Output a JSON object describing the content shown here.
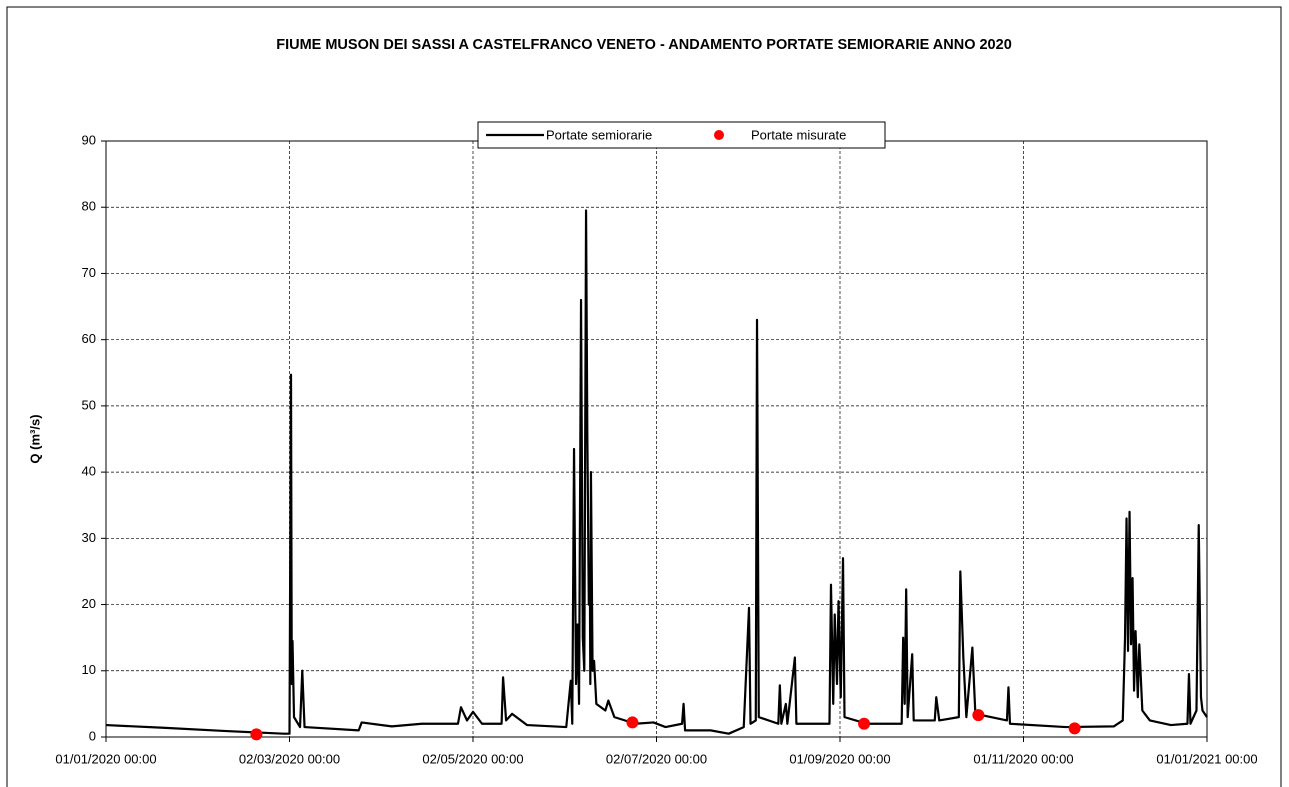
{
  "chart_data": {
    "type": "line",
    "title": "FIUME MUSON DEI SASSI A CASTELFRANCO VENETO - ANDAMENTO PORTATE SEMIORARIE ANNO 2020",
    "ylabel": "Q (m³/s)",
    "xlim": [
      "2020-01-01 00:00",
      "2021-01-01 00:00"
    ],
    "xticks": [
      {
        "value": "2020-01-01 00:00",
        "label": "01/01/2020 00:00"
      },
      {
        "value": "2020-03-02 00:00",
        "label": "02/03/2020 00:00"
      },
      {
        "value": "2020-05-02 00:00",
        "label": "02/05/2020 00:00"
      },
      {
        "value": "2020-07-02 00:00",
        "label": "02/07/2020 00:00"
      },
      {
        "value": "2020-09-01 00:00",
        "label": "01/09/2020 00:00"
      },
      {
        "value": "2020-11-01 00:00",
        "label": "01/11/2020 00:00"
      },
      {
        "value": "2021-01-01 00:00",
        "label": "01/01/2021 00:00"
      }
    ],
    "ylim": [
      0,
      90
    ],
    "yticks": [
      0,
      10,
      20,
      30,
      40,
      50,
      60,
      70,
      80,
      90
    ],
    "grid": true,
    "legend": "top",
    "series": [
      {
        "name": "Portate semiorarie",
        "color": "#000000",
        "marker": "line",
        "x": [
          "2020-01-01 00:00",
          "2020-01-20 00:00",
          "2020-02-10 00:00",
          "2020-02-29 00:00",
          "2020-03-02 00:00",
          "2020-03-02 12:00",
          "2020-03-02 18:00",
          "2020-03-03 00:00",
          "2020-03-03 12:00",
          "2020-03-05 12:00",
          "2020-03-06 06:00",
          "2020-03-07 00:00",
          "2020-03-25 00:00",
          "2020-03-26 00:00",
          "2020-04-05 00:00",
          "2020-04-15 00:00",
          "2020-04-27 00:00",
          "2020-04-28 00:00",
          "2020-04-30 00:00",
          "2020-05-02 00:00",
          "2020-05-05 00:00",
          "2020-05-11 12:00",
          "2020-05-12 00:00",
          "2020-05-13 00:00",
          "2020-05-15 00:00",
          "2020-05-20 00:00",
          "2020-06-02 00:00",
          "2020-06-03 12:00",
          "2020-06-04 00:00",
          "2020-06-04 14:00",
          "2020-06-05 06:00",
          "2020-06-05 18:00",
          "2020-06-06 06:00",
          "2020-06-06 22:00",
          "2020-06-07 12:00",
          "2020-06-08 00:00",
          "2020-06-08 14:00",
          "2020-06-09 00:00",
          "2020-06-09 12:00",
          "2020-06-09 20:00",
          "2020-06-10 00:00",
          "2020-06-10 05:00",
          "2020-06-10 18:00",
          "2020-06-11 06:00",
          "2020-06-12 00:00",
          "2020-06-15 00:00",
          "2020-06-16 00:00",
          "2020-06-18 00:00",
          "2020-06-25 00:00",
          "2020-07-01 00:00",
          "2020-07-05 00:00",
          "2020-07-10 12:00",
          "2020-07-11 00:00",
          "2020-07-11 12:00",
          "2020-07-20 00:00",
          "2020-07-26 00:00",
          "2020-07-31 00:00",
          "2020-08-01 18:00",
          "2020-08-02 06:00",
          "2020-08-04 00:00",
          "2020-08-04 10:00",
          "2020-08-05 00:00",
          "2020-08-11 12:00",
          "2020-08-12 00:00",
          "2020-08-12 12:00",
          "2020-08-14 00:00",
          "2020-08-14 12:00",
          "2020-08-17 00:00",
          "2020-08-17 12:00",
          "2020-08-28 12:00",
          "2020-08-29 00:00",
          "2020-08-29 18:00",
          "2020-08-30 06:00",
          "2020-08-31 00:00",
          "2020-08-31 12:00",
          "2020-09-01 06:00",
          "2020-09-02 00:00",
          "2020-09-02 12:00",
          "2020-09-10 00:00",
          "2020-09-21 12:00",
          "2020-09-22 00:00",
          "2020-09-22 12:00",
          "2020-09-23 00:00",
          "2020-09-23 12:00",
          "2020-09-25 00:00",
          "2020-09-25 12:00",
          "2020-10-02 12:00",
          "2020-10-03 00:00",
          "2020-10-04 00:00",
          "2020-10-10 12:00",
          "2020-10-11 00:00",
          "2020-10-12 00:00",
          "2020-10-13 00:00",
          "2020-10-15 00:00",
          "2020-10-16 00:00",
          "2020-10-26 12:00",
          "2020-10-27 00:00",
          "2020-10-27 12:00",
          "2020-11-15 00:00",
          "2020-12-01 00:00",
          "2020-12-04 00:00",
          "2020-12-04 18:00",
          "2020-12-05 06:00",
          "2020-12-05 18:00",
          "2020-12-06 06:00",
          "2020-12-06 18:00",
          "2020-12-07 06:00",
          "2020-12-07 18:00",
          "2020-12-08 06:00",
          "2020-12-09 00:00",
          "2020-12-09 12:00",
          "2020-12-10 12:00",
          "2020-12-13 00:00",
          "2020-12-20 00:00",
          "2020-12-25 12:00",
          "2020-12-26 00:00",
          "2020-12-26 12:00",
          "2020-12-28 12:00",
          "2020-12-29 06:00",
          "2020-12-30 00:00",
          "2020-12-30 12:00",
          "2020-12-31 23:30"
        ],
        "values": [
          1.8,
          1.4,
          0.9,
          0.5,
          0.5,
          54.7,
          8,
          14.5,
          3,
          1.5,
          10,
          1.5,
          1,
          2.2,
          1.6,
          2,
          2,
          4.5,
          2.5,
          3.8,
          2,
          2,
          9,
          2.5,
          3.5,
          1.8,
          1.5,
          8.5,
          2,
          43.5,
          8,
          17,
          5,
          66,
          15,
          10,
          79.5,
          46,
          20,
          26,
          8,
          40,
          10,
          11.5,
          5,
          4,
          5.5,
          3,
          2,
          2.2,
          1.5,
          2,
          5,
          1,
          1,
          0.5,
          1.5,
          19.5,
          2,
          2.5,
          63,
          3,
          2,
          7.8,
          2,
          5,
          2,
          12,
          2,
          2,
          23,
          5,
          18.5,
          8,
          20.5,
          6,
          27,
          3,
          2,
          2,
          15,
          5,
          22.3,
          3,
          12.5,
          2.5,
          2.5,
          6,
          2.5,
          3,
          25,
          12,
          3,
          13.5,
          3.5,
          2.5,
          7.5,
          2,
          1.5,
          1.6,
          2.5,
          15,
          33,
          13,
          34,
          14,
          24,
          7,
          16,
          6,
          14,
          4,
          2.5,
          1.8,
          2,
          9.5,
          2,
          4,
          32,
          6,
          4,
          3
        ]
      },
      {
        "name": "Portate misurate",
        "color": "#ff0000",
        "marker": "circle",
        "x": [
          "2020-02-20 00:00",
          "2020-06-24 00:00",
          "2020-09-09 00:00",
          "2020-10-17 00:00",
          "2020-11-18 00:00"
        ],
        "values": [
          0.4,
          2.2,
          2.0,
          3.3,
          1.3
        ]
      }
    ]
  }
}
